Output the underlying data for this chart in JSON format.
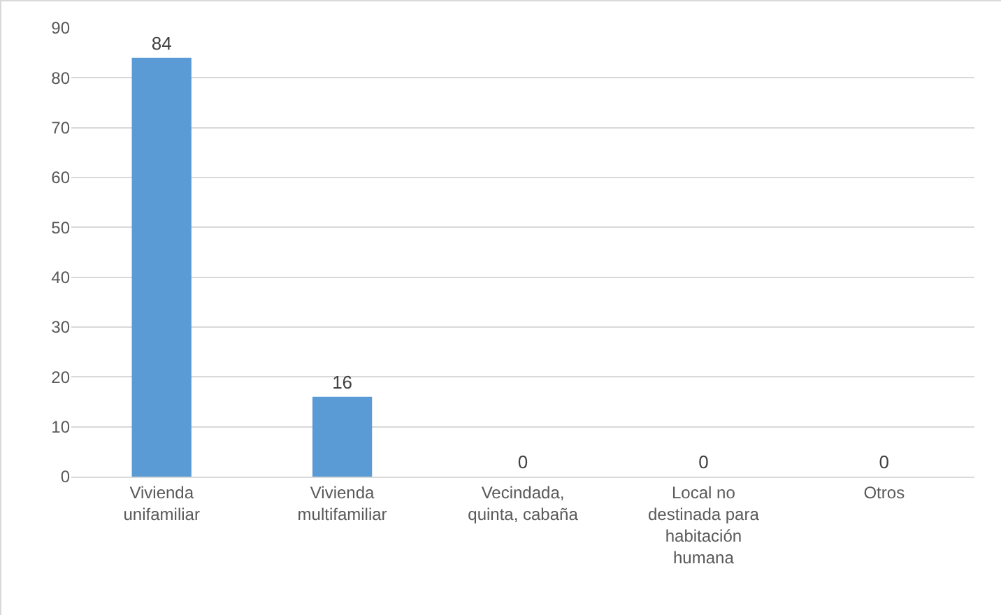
{
  "chart_data": {
    "type": "bar",
    "categories": [
      "Vivienda unifamiliar",
      "Vivienda multifamiliar",
      "Vecindada, quinta, cabaña",
      "Local no destinada para habitación humana",
      "Otros"
    ],
    "values": [
      84,
      16,
      0,
      0,
      0
    ],
    "color": "#5b9bd5",
    "ylim": [
      0,
      90
    ],
    "yticks": [
      0,
      10,
      20,
      30,
      40,
      50,
      60,
      70,
      80,
      90
    ],
    "grid": "y",
    "data_labels": true
  }
}
